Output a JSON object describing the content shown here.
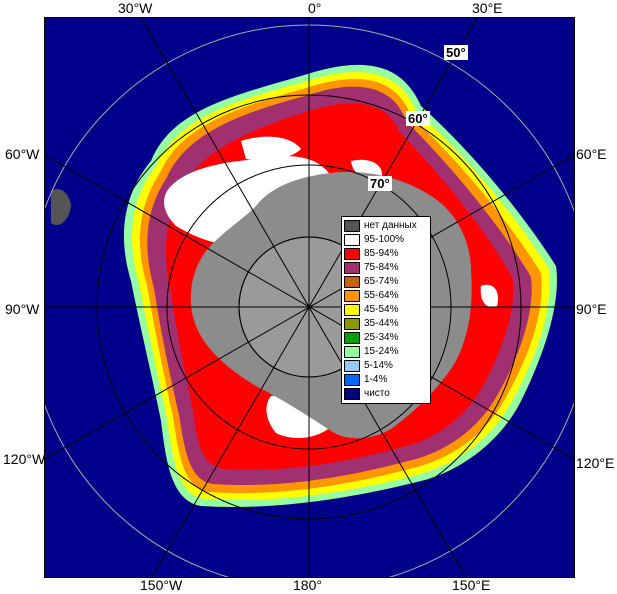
{
  "map": {
    "labels": {
      "top": [
        "30°W",
        "0°",
        "30°E"
      ],
      "left": [
        "60°W",
        "90°W",
        "120°W"
      ],
      "right": [
        "60°E",
        "90°E",
        "120°E"
      ],
      "bottom": [
        "150°W",
        "180°",
        "150°E"
      ]
    },
    "latitudes": [
      "50°",
      "60°",
      "70°"
    ]
  },
  "legend": {
    "items": [
      {
        "label": "нет данных",
        "color": "#555555"
      },
      {
        "label": "95-100%",
        "color": "#ffffff"
      },
      {
        "label": "85-94%",
        "color": "#ff0000"
      },
      {
        "label": "75-84%",
        "color": "#a03070"
      },
      {
        "label": "65-74%",
        "color": "#c86400"
      },
      {
        "label": "55-64%",
        "color": "#ff9600"
      },
      {
        "label": "45-54%",
        "color": "#ffff00"
      },
      {
        "label": "35-44%",
        "color": "#8c9600"
      },
      {
        "label": "25-34%",
        "color": "#00a000"
      },
      {
        "label": "15-24%",
        "color": "#96ffa0"
      },
      {
        "label": "5-14%",
        "color": "#96c8ff"
      },
      {
        "label": "1-4%",
        "color": "#0064ff"
      },
      {
        "label": "чисто",
        "color": "#000080"
      }
    ]
  },
  "colors": {
    "ocean": "#00008b",
    "land": "#8c8c8c",
    "continent_core": "#9a9a9a"
  }
}
